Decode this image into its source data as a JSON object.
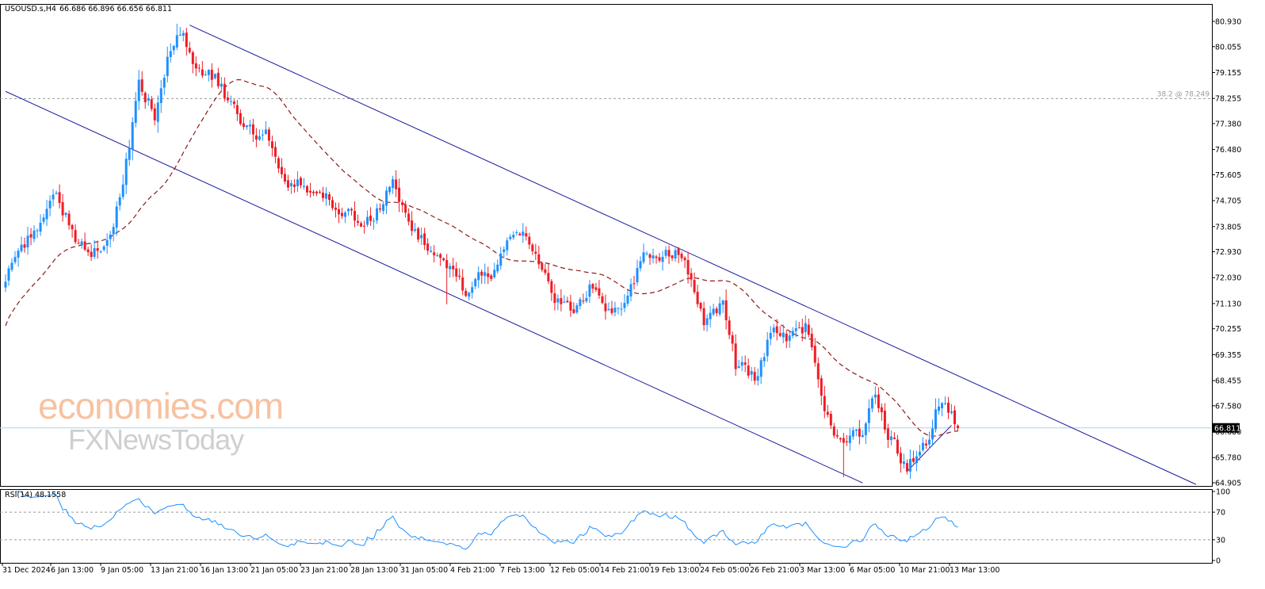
{
  "header": {
    "symbol_text": "USOUSD.s,H4",
    "ohlc_text": "66.686 66.896 66.656 66.811"
  },
  "rsi_label": "RSI(14) 48.1558",
  "fib": {
    "label": "38.2 @ 78.249",
    "value": 78.249
  },
  "current_price": {
    "label": "66.811",
    "value": 66.811
  },
  "watermark": {
    "top": "economies.com",
    "bottom": "FXNewsToday"
  },
  "colors": {
    "bull": "#1e90ff",
    "bear": "#ee1c25",
    "channel": "#1a1a9e",
    "ma": "#8b1a1a",
    "rsi": "#1e90ff",
    "current_line": "#a9d3ea",
    "watermark_orange": "#f7c2a1",
    "watermark_gray": "#cfcfcf"
  },
  "chart_data": {
    "type": "candlestick",
    "title": "",
    "price_axis": {
      "range": [
        64.905,
        80.93
      ],
      "ticks": [
        "80.930",
        "80.055",
        "79.155",
        "78.255",
        "77.380",
        "76.480",
        "75.605",
        "74.705",
        "73.805",
        "72.930",
        "72.030",
        "71.130",
        "70.255",
        "69.355",
        "68.455",
        "67.580",
        "66.680",
        "65.780",
        "64.905"
      ]
    },
    "time_axis": {
      "ticks": [
        "31 Dec 2024",
        "6 Jan 13:00",
        "9 Jan 05:00",
        "13 Jan 21:00",
        "16 Jan 13:00",
        "21 Jan 05:00",
        "23 Jan 21:00",
        "28 Jan 13:00",
        "31 Jan 05:00",
        "4 Feb 21:00",
        "7 Feb 13:00",
        "12 Feb 05:00",
        "14 Feb 21:00",
        "19 Feb 13:00",
        "24 Feb 05:00",
        "26 Feb 21:00",
        "3 Mar 13:00",
        "6 Mar 05:00",
        "10 Mar 21:00",
        "13 Mar 13:00"
      ]
    },
    "price_anchors": [
      {
        "time_index": 0,
        "price": 72.0
      },
      {
        "time_index": 8,
        "price": 73.5
      },
      {
        "time_index": 16,
        "price": 74.9
      },
      {
        "time_index": 22,
        "price": 73.4
      },
      {
        "time_index": 30,
        "price": 73.0
      },
      {
        "time_index": 34,
        "price": 73.9
      },
      {
        "time_index": 42,
        "price": 78.6
      },
      {
        "time_index": 47,
        "price": 77.8
      },
      {
        "time_index": 54,
        "price": 80.8
      },
      {
        "time_index": 60,
        "price": 79.3
      },
      {
        "time_index": 66,
        "price": 79.0
      },
      {
        "time_index": 74,
        "price": 77.3
      },
      {
        "time_index": 82,
        "price": 76.9
      },
      {
        "time_index": 90,
        "price": 75.4
      },
      {
        "time_index": 98,
        "price": 75.0
      },
      {
        "time_index": 106,
        "price": 74.4
      },
      {
        "time_index": 114,
        "price": 74.0
      },
      {
        "time_index": 122,
        "price": 75.2
      },
      {
        "time_index": 130,
        "price": 73.4
      },
      {
        "time_index": 138,
        "price": 72.3
      },
      {
        "time_index": 146,
        "price": 71.5
      },
      {
        "time_index": 154,
        "price": 72.4
      },
      {
        "time_index": 160,
        "price": 73.7
      },
      {
        "time_index": 166,
        "price": 73.3
      },
      {
        "time_index": 172,
        "price": 71.3
      },
      {
        "time_index": 178,
        "price": 70.6
      },
      {
        "time_index": 184,
        "price": 71.8
      },
      {
        "time_index": 190,
        "price": 70.8
      },
      {
        "time_index": 196,
        "price": 71.6
      },
      {
        "time_index": 202,
        "price": 72.9
      },
      {
        "time_index": 206,
        "price": 72.2
      },
      {
        "time_index": 211,
        "price": 73.0
      },
      {
        "time_index": 216,
        "price": 71.9
      },
      {
        "time_index": 220,
        "price": 70.4
      },
      {
        "time_index": 226,
        "price": 71.0
      },
      {
        "time_index": 230,
        "price": 68.9
      },
      {
        "time_index": 236,
        "price": 68.6
      },
      {
        "time_index": 242,
        "price": 70.3
      },
      {
        "time_index": 248,
        "price": 69.9
      },
      {
        "time_index": 252,
        "price": 70.2
      },
      {
        "time_index": 256,
        "price": 68.1
      },
      {
        "time_index": 262,
        "price": 66.5
      },
      {
        "time_index": 266,
        "price": 66.6
      },
      {
        "time_index": 270,
        "price": 66.3
      },
      {
        "time_index": 274,
        "price": 67.9
      },
      {
        "time_index": 278,
        "price": 66.6
      },
      {
        "time_index": 284,
        "price": 65.6
      },
      {
        "time_index": 290,
        "price": 66.4
      },
      {
        "time_index": 294,
        "price": 67.7
      },
      {
        "time_index": 298,
        "price": 67.4
      },
      {
        "time_index": 300,
        "price": 66.81
      }
    ],
    "series": [
      {
        "name": "",
        "kind": "moving-average",
        "style": "dashed"
      },
      {
        "name": "",
        "kind": "channel-upper",
        "points": [
          {
            "time_index": 58,
            "price": 80.8
          },
          {
            "time_index": 375,
            "price": 64.85
          }
        ]
      },
      {
        "name": "",
        "kind": "channel-lower",
        "points": [
          {
            "time_index": 0,
            "price": 78.5
          },
          {
            "time_index": 270,
            "price": 64.9
          }
        ]
      },
      {
        "name": "",
        "kind": "support-line",
        "points": [
          {
            "time_index": 284,
            "price": 65.3
          },
          {
            "time_index": 298,
            "price": 66.9
          }
        ]
      }
    ],
    "rsi": {
      "period": 14,
      "value": 48.1558,
      "range": [
        0,
        100
      ],
      "ticks": [
        "100",
        "70",
        "30",
        "0"
      ],
      "levels": [
        70,
        30
      ]
    },
    "grid": false
  }
}
